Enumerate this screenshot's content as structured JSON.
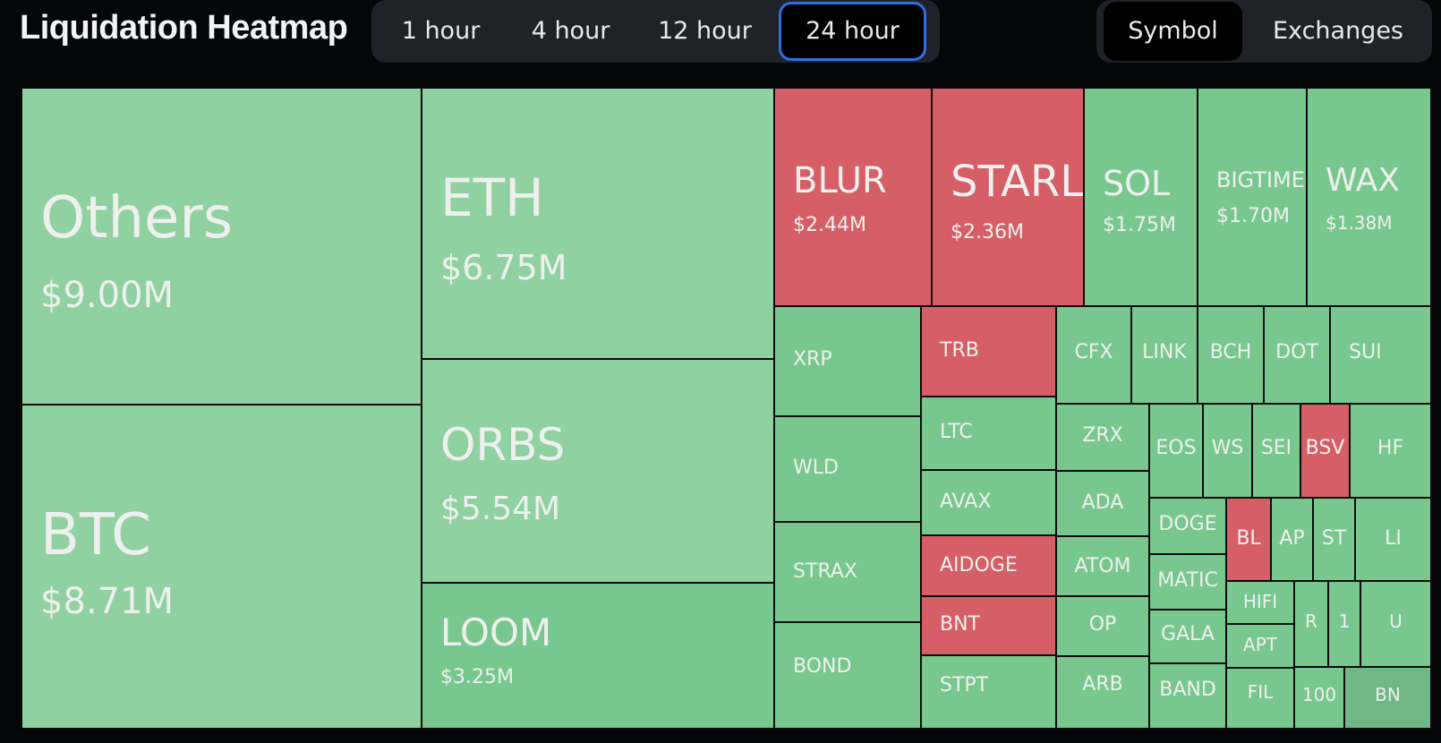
{
  "header": {
    "title": "Liquidation Heatmap",
    "time_tabs": [
      {
        "label": "1 hour"
      },
      {
        "label": "4 hour"
      },
      {
        "label": "12 hour"
      },
      {
        "label": "24 hour"
      }
    ],
    "active_time_tab": "24 hour",
    "group_tabs": [
      {
        "label": "Symbol"
      },
      {
        "label": "Exchanges"
      }
    ],
    "active_group_tab": "Symbol"
  },
  "colors": {
    "green_light": "#8fd1a0",
    "green": "#78c78e",
    "green_dark": "#6fb886",
    "red": "#d65f67"
  },
  "tiles": [
    {
      "symbol": "Others",
      "value": "$9.00M",
      "color": "green_light"
    },
    {
      "symbol": "BTC",
      "value": "$8.71M",
      "color": "green_light"
    },
    {
      "symbol": "ETH",
      "value": "$6.75M",
      "color": "green_light"
    },
    {
      "symbol": "ORBS",
      "value": "$5.54M",
      "color": "green_light"
    },
    {
      "symbol": "LOOM",
      "value": "$3.25M",
      "color": "green"
    },
    {
      "symbol": "BLUR",
      "value": "$2.44M",
      "color": "red"
    },
    {
      "symbol": "STARL",
      "value": "$2.36M",
      "color": "red"
    },
    {
      "symbol": "SOL",
      "value": "$1.75M",
      "color": "green"
    },
    {
      "symbol": "BIGTIME",
      "value": "$1.70M",
      "color": "green"
    },
    {
      "symbol": "WAX",
      "value": "$1.38M",
      "color": "green"
    },
    {
      "symbol": "XRP",
      "color": "green"
    },
    {
      "symbol": "WLD",
      "color": "green"
    },
    {
      "symbol": "STRAX",
      "color": "green"
    },
    {
      "symbol": "BOND",
      "color": "green"
    },
    {
      "symbol": "TRB",
      "color": "red"
    },
    {
      "symbol": "LTC",
      "color": "green"
    },
    {
      "symbol": "AVAX",
      "color": "green"
    },
    {
      "symbol": "AIDOGE",
      "color": "red"
    },
    {
      "symbol": "BNT",
      "color": "red"
    },
    {
      "symbol": "STPT",
      "color": "green"
    },
    {
      "symbol": "CFX",
      "color": "green"
    },
    {
      "symbol": "LINK",
      "color": "green"
    },
    {
      "symbol": "BCH",
      "color": "green"
    },
    {
      "symbol": "DOT",
      "color": "green"
    },
    {
      "symbol": "SUI",
      "color": "green"
    },
    {
      "symbol": "ZRX",
      "color": "green"
    },
    {
      "symbol": "ADA",
      "color": "green"
    },
    {
      "symbol": "ATOM",
      "color": "green"
    },
    {
      "symbol": "OP",
      "color": "green"
    },
    {
      "symbol": "ARB",
      "color": "green"
    },
    {
      "symbol": "EOS",
      "color": "green"
    },
    {
      "symbol": "WS",
      "color": "green"
    },
    {
      "symbol": "SEI",
      "color": "green"
    },
    {
      "symbol": "BSV",
      "color": "red"
    },
    {
      "symbol": "HF",
      "color": "green"
    },
    {
      "symbol": "DOGE",
      "color": "green"
    },
    {
      "symbol": "BL",
      "color": "red"
    },
    {
      "symbol": "AP",
      "color": "green"
    },
    {
      "symbol": "ST",
      "color": "green"
    },
    {
      "symbol": "LI",
      "color": "green"
    },
    {
      "symbol": "MATIC",
      "color": "green"
    },
    {
      "symbol": "HIFI",
      "color": "green"
    },
    {
      "symbol": "R",
      "color": "green"
    },
    {
      "symbol": "1",
      "color": "green"
    },
    {
      "symbol": "U",
      "color": "green"
    },
    {
      "symbol": "GALA",
      "color": "green"
    },
    {
      "symbol": "APT",
      "color": "green"
    },
    {
      "symbol": "BAND",
      "color": "green"
    },
    {
      "symbol": "FIL",
      "color": "green"
    },
    {
      "symbol": "100",
      "color": "green"
    },
    {
      "symbol": "BN",
      "color": "green_dark"
    }
  ]
}
